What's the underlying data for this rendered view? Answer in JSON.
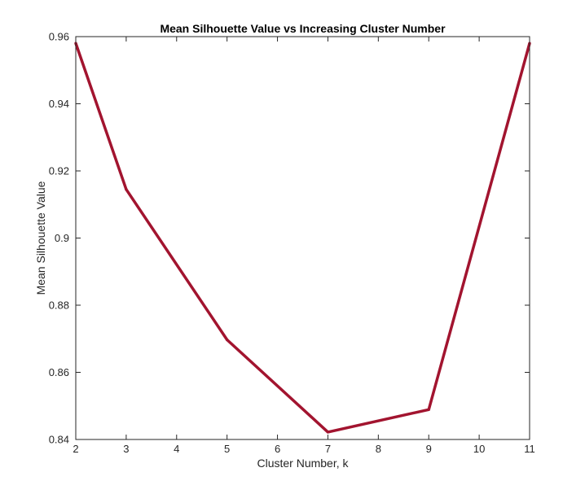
{
  "chart_data": {
    "type": "line",
    "title": "Mean Silhouette Value vs Increasing Cluster Number",
    "xlabel": "Cluster Number, k",
    "ylabel": "Mean Silhouette Value",
    "xlim": [
      2,
      11
    ],
    "ylim": [
      0.84,
      0.96
    ],
    "xticks": [
      "2",
      "3",
      "4",
      "5",
      "6",
      "7",
      "8",
      "9",
      "10",
      "11"
    ],
    "yticks": [
      "0.84",
      "0.86",
      "0.88",
      "0.9",
      "0.92",
      "0.94",
      "0.96"
    ],
    "grid": false,
    "series": [
      {
        "x": [
          2,
          3,
          5,
          7,
          9,
          11
        ],
        "y": [
          0.958,
          0.9145,
          0.8697,
          0.8422,
          0.8489,
          0.958
        ],
        "color": "#A2142F"
      }
    ]
  }
}
